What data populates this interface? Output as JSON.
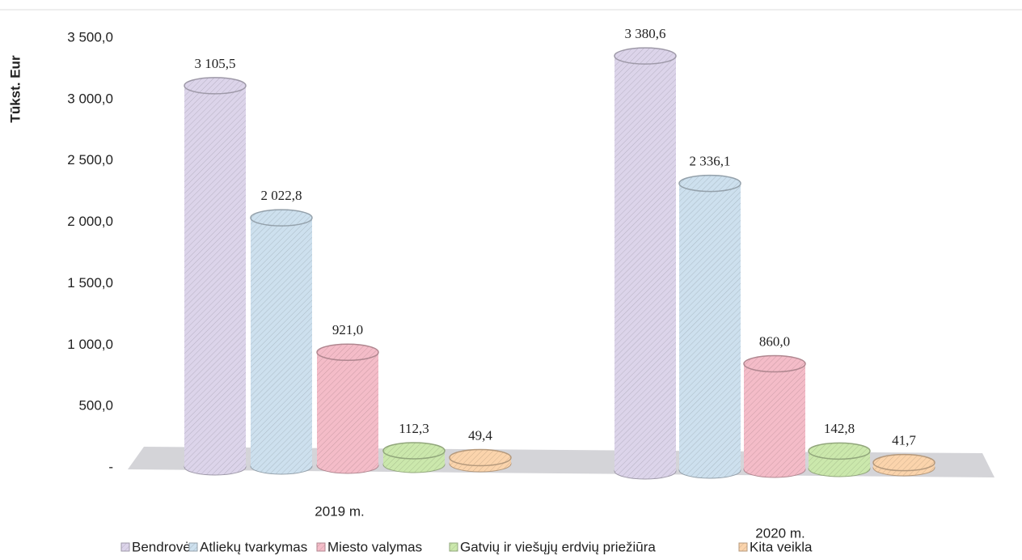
{
  "chart_data": {
    "type": "bar",
    "y_label": "Tūkst. Eur",
    "categories": [
      "2019 m.",
      "2020 m."
    ],
    "series": [
      {
        "name": "Bendrovė",
        "color": "#dcd4ea",
        "values": [
          3105.5,
          3380.6
        ],
        "value_labels": [
          "3 105,5",
          "3 380,6"
        ]
      },
      {
        "name": "Atliekų tvarkymas",
        "color": "#cde0ee",
        "values": [
          2022.8,
          2336.1
        ],
        "value_labels": [
          "2 022,8",
          "2 336,1"
        ]
      },
      {
        "name": "Miesto valymas",
        "color": "#f4bcc8",
        "values": [
          921.0,
          860.0
        ],
        "value_labels": [
          "921,0",
          "860,0"
        ]
      },
      {
        "name": "Gatvių ir viešųjų erdvių priežiūra",
        "color": "#cbe8ac",
        "values": [
          112.3,
          142.8
        ],
        "value_labels": [
          "112,3",
          "142,8"
        ]
      },
      {
        "name": "Kita veikla",
        "color": "#fbd4ac",
        "values": [
          49.4,
          41.7
        ],
        "value_labels": [
          "49,4",
          "41,7"
        ]
      }
    ],
    "ylim": [
      0,
      3500
    ],
    "yticks": [
      {
        "value": 0,
        "label": "-"
      },
      {
        "value": 500,
        "label": "500,0"
      },
      {
        "value": 1000,
        "label": "1 000,0"
      },
      {
        "value": 1500,
        "label": "1 500,0"
      },
      {
        "value": 2000,
        "label": "2 000,0"
      },
      {
        "value": 2500,
        "label": "2 500,0"
      },
      {
        "value": 3000,
        "label": "3 000,0"
      },
      {
        "value": 3500,
        "label": "3 500,0"
      }
    ]
  }
}
